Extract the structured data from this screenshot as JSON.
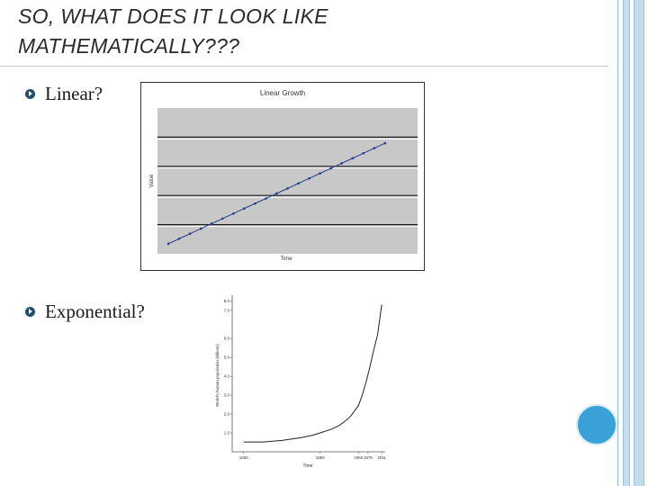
{
  "slide": {
    "title_line1": "SO, WHAT DOES IT LOOK LIKE",
    "title_line2": "MATHEMATICALLY???"
  },
  "bullets": [
    {
      "label": "Linear?",
      "icon": "arrow-bullet-icon"
    },
    {
      "label": "Exponential?",
      "icon": "arrow-bullet-icon"
    }
  ],
  "colors": {
    "accent_circle": "#3aa0d8",
    "border_blue": "#c4dceb",
    "linear_series": "#1f3b8c",
    "plot_bg": "#c8c8c8"
  },
  "chart_data": [
    {
      "type": "line",
      "title": "Linear Growth",
      "xlabel": "Time",
      "ylabel": "Value",
      "grid": true,
      "legend": "none",
      "x": [
        0,
        1,
        2,
        3,
        4,
        5,
        6,
        7,
        8,
        9,
        10,
        11,
        12,
        13,
        14,
        15,
        16,
        17,
        18,
        19,
        20
      ],
      "values": [
        0,
        1,
        2,
        3,
        4,
        5,
        6,
        7,
        8,
        9,
        10,
        11,
        12,
        13,
        14,
        15,
        16,
        17,
        18,
        19,
        20
      ],
      "xlim": [
        -1,
        23
      ],
      "ylim": [
        -2,
        27
      ]
    },
    {
      "type": "line",
      "title": "",
      "xlabel": "Time",
      "ylabel": "World's human population (billions)",
      "grid": false,
      "legend": "none",
      "x_ticks": [
        "1650",
        "1850",
        "1950",
        "1975",
        "2011"
      ],
      "y_ticks": [
        "1.0",
        "2.0",
        "3.0",
        "4.0",
        "5.0",
        "6.0",
        "7.5",
        "8.0"
      ],
      "x": [
        1650,
        1700,
        1750,
        1800,
        1830,
        1850,
        1880,
        1900,
        1920,
        1930,
        1950,
        1960,
        1970,
        1975,
        1980,
        1990,
        2000,
        2011
      ],
      "values": [
        0.52,
        0.52,
        0.6,
        0.75,
        0.88,
        1.0,
        1.2,
        1.4,
        1.7,
        1.9,
        2.45,
        3.0,
        3.7,
        4.1,
        4.5,
        5.4,
        6.2,
        7.8
      ],
      "xlim": [
        1620,
        2020
      ],
      "ylim": [
        0,
        8.3
      ]
    }
  ]
}
